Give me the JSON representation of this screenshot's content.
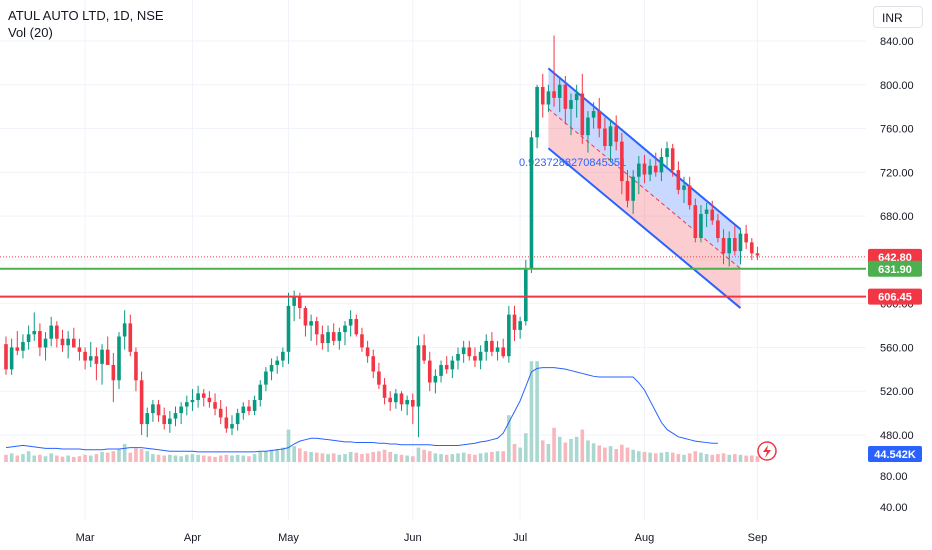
{
  "header": {
    "title": "ATUL AUTO LTD, 1D, NSE",
    "volume_label": "Vol (20)",
    "currency": "INR"
  },
  "chart_data": {
    "type": "candlestick",
    "symbol": "ATUL AUTO LTD",
    "interval": "1D",
    "exchange": "NSE",
    "y_range": [
      450,
      855
    ],
    "price_ticks": [
      480,
      520,
      560,
      600,
      640,
      680,
      720,
      760,
      800,
      840
    ],
    "price_tick_labels": [
      "480.00",
      "520.00",
      "560.00",
      "600.00",
      "640.00",
      "680.00",
      "720.00",
      "760.00",
      "800.00",
      "840.00"
    ],
    "volume_tick_labels": [
      "80.00",
      "40.00"
    ],
    "months": [
      {
        "label": "Mar",
        "index": 14
      },
      {
        "label": "Apr",
        "index": 33
      },
      {
        "label": "May",
        "index": 50
      },
      {
        "label": "Jun",
        "index": 72
      },
      {
        "label": "Jul",
        "index": 91
      },
      {
        "label": "Aug",
        "index": 113
      },
      {
        "label": "Sep",
        "index": 133
      }
    ],
    "candles": [
      [
        563,
        570,
        535,
        540,
        20
      ],
      [
        540,
        568,
        535,
        560,
        24
      ],
      [
        560,
        575,
        553,
        557,
        18
      ],
      [
        557,
        572,
        550,
        565,
        22
      ],
      [
        565,
        580,
        558,
        572,
        30
      ],
      [
        572,
        592,
        566,
        575,
        18
      ],
      [
        575,
        582,
        552,
        560,
        20
      ],
      [
        560,
        574,
        548,
        568,
        16
      ],
      [
        568,
        588,
        561,
        580,
        24
      ],
      [
        580,
        584,
        560,
        568,
        18
      ],
      [
        568,
        576,
        556,
        562,
        15
      ],
      [
        562,
        575,
        550,
        568,
        18
      ],
      [
        568,
        578,
        561,
        560,
        14
      ],
      [
        560,
        568,
        548,
        556,
        16
      ],
      [
        556,
        560,
        540,
        548,
        20
      ],
      [
        548,
        565,
        542,
        552,
        18
      ],
      [
        552,
        560,
        530,
        545,
        22
      ],
      [
        545,
        563,
        526,
        558,
        28
      ],
      [
        558,
        570,
        548,
        544,
        26
      ],
      [
        544,
        555,
        510,
        530,
        30
      ],
      [
        530,
        574,
        522,
        570,
        36
      ],
      [
        570,
        594,
        558,
        582,
        50
      ],
      [
        582,
        590,
        552,
        556,
        26
      ],
      [
        556,
        560,
        520,
        530,
        38
      ],
      [
        530,
        538,
        480,
        490,
        36
      ],
      [
        490,
        505,
        478,
        500,
        30
      ],
      [
        500,
        512,
        492,
        508,
        22
      ],
      [
        508,
        512,
        492,
        498,
        20
      ],
      [
        498,
        505,
        485,
        490,
        18
      ],
      [
        490,
        502,
        482,
        495,
        20
      ],
      [
        495,
        506,
        488,
        500,
        18
      ],
      [
        500,
        510,
        490,
        506,
        16
      ],
      [
        506,
        516,
        498,
        510,
        20
      ],
      [
        510,
        522,
        502,
        512,
        22
      ],
      [
        512,
        525,
        505,
        518,
        20
      ],
      [
        518,
        522,
        506,
        514,
        18
      ],
      [
        514,
        520,
        505,
        510,
        16
      ],
      [
        510,
        518,
        498,
        504,
        14
      ],
      [
        504,
        512,
        490,
        496,
        18
      ],
      [
        496,
        506,
        482,
        486,
        20
      ],
      [
        486,
        498,
        480,
        490,
        18
      ],
      [
        490,
        504,
        484,
        500,
        20
      ],
      [
        500,
        510,
        494,
        506,
        18
      ],
      [
        506,
        512,
        498,
        502,
        16
      ],
      [
        502,
        516,
        498,
        512,
        22
      ],
      [
        512,
        530,
        506,
        526,
        28
      ],
      [
        526,
        542,
        520,
        538,
        30
      ],
      [
        538,
        550,
        530,
        544,
        34
      ],
      [
        544,
        552,
        536,
        548,
        36
      ],
      [
        548,
        560,
        542,
        556,
        40
      ],
      [
        556,
        610,
        545,
        598,
        90
      ],
      [
        598,
        612,
        584,
        606,
        44
      ],
      [
        606,
        610,
        586,
        596,
        38
      ],
      [
        596,
        598,
        570,
        580,
        30
      ],
      [
        580,
        590,
        566,
        584,
        28
      ],
      [
        584,
        588,
        562,
        572,
        26
      ],
      [
        572,
        580,
        558,
        564,
        24
      ],
      [
        564,
        580,
        556,
        574,
        22
      ],
      [
        574,
        582,
        562,
        566,
        24
      ],
      [
        566,
        578,
        558,
        574,
        20
      ],
      [
        574,
        584,
        562,
        580,
        22
      ],
      [
        580,
        594,
        570,
        586,
        28
      ],
      [
        586,
        590,
        570,
        572,
        26
      ],
      [
        572,
        578,
        556,
        560,
        22
      ],
      [
        560,
        566,
        546,
        552,
        24
      ],
      [
        552,
        558,
        532,
        538,
        28
      ],
      [
        538,
        546,
        522,
        526,
        30
      ],
      [
        526,
        532,
        508,
        514,
        34
      ],
      [
        514,
        520,
        502,
        510,
        28
      ],
      [
        510,
        522,
        504,
        518,
        22
      ],
      [
        518,
        520,
        502,
        508,
        20
      ],
      [
        508,
        516,
        498,
        512,
        18
      ],
      [
        512,
        518,
        490,
        506,
        16
      ],
      [
        506,
        570,
        478,
        562,
        40
      ],
      [
        562,
        572,
        545,
        548,
        34
      ],
      [
        548,
        556,
        520,
        528,
        30
      ],
      [
        528,
        540,
        518,
        534,
        24
      ],
      [
        534,
        548,
        528,
        544,
        22
      ],
      [
        544,
        552,
        536,
        540,
        20
      ],
      [
        540,
        552,
        532,
        548,
        22
      ],
      [
        548,
        560,
        540,
        554,
        24
      ],
      [
        554,
        566,
        546,
        560,
        26
      ],
      [
        560,
        566,
        548,
        552,
        22
      ],
      [
        552,
        560,
        542,
        548,
        20
      ],
      [
        548,
        562,
        540,
        556,
        24
      ],
      [
        556,
        572,
        548,
        566,
        26
      ],
      [
        566,
        574,
        552,
        556,
        28
      ],
      [
        556,
        566,
        548,
        560,
        30
      ],
      [
        560,
        568,
        550,
        552,
        30
      ],
      [
        552,
        598,
        546,
        590,
        130
      ],
      [
        590,
        598,
        566,
        576,
        50
      ],
      [
        576,
        588,
        568,
        584,
        40
      ],
      [
        584,
        640,
        580,
        632,
        80
      ],
      [
        632,
        758,
        628,
        752,
        280
      ],
      [
        752,
        800,
        742,
        798,
        280
      ],
      [
        798,
        810,
        770,
        782,
        60
      ],
      [
        782,
        800,
        775,
        794,
        50
      ],
      [
        794,
        845,
        780,
        788,
        95
      ],
      [
        788,
        806,
        775,
        800,
        70
      ],
      [
        800,
        808,
        764,
        778,
        54
      ],
      [
        778,
        792,
        754,
        786,
        64
      ],
      [
        786,
        800,
        770,
        792,
        70
      ],
      [
        792,
        810,
        746,
        754,
        90
      ],
      [
        754,
        776,
        738,
        770,
        60
      ],
      [
        770,
        784,
        760,
        776,
        52
      ],
      [
        776,
        788,
        752,
        760,
        46
      ],
      [
        760,
        770,
        740,
        744,
        40
      ],
      [
        744,
        768,
        730,
        762,
        44
      ],
      [
        762,
        772,
        740,
        748,
        36
      ],
      [
        748,
        756,
        700,
        712,
        48
      ],
      [
        712,
        722,
        688,
        694,
        40
      ],
      [
        694,
        722,
        682,
        716,
        34
      ],
      [
        716,
        735,
        700,
        728,
        30
      ],
      [
        728,
        736,
        710,
        718,
        28
      ],
      [
        718,
        732,
        712,
        726,
        26
      ],
      [
        726,
        738,
        716,
        720,
        24
      ],
      [
        720,
        742,
        712,
        734,
        26
      ],
      [
        734,
        748,
        724,
        742,
        28
      ],
      [
        742,
        746,
        716,
        722,
        26
      ],
      [
        722,
        730,
        700,
        704,
        22
      ],
      [
        704,
        716,
        692,
        708,
        20
      ],
      [
        708,
        716,
        686,
        690,
        24
      ],
      [
        690,
        696,
        656,
        660,
        30
      ],
      [
        660,
        690,
        656,
        682,
        26
      ],
      [
        682,
        692,
        670,
        686,
        22
      ],
      [
        686,
        694,
        672,
        676,
        20
      ],
      [
        676,
        682,
        656,
        660,
        22
      ],
      [
        660,
        668,
        636,
        646,
        24
      ],
      [
        646,
        666,
        634,
        660,
        20
      ],
      [
        660,
        672,
        644,
        648,
        22
      ],
      [
        648,
        668,
        636,
        664,
        20
      ],
      [
        664,
        672,
        650,
        656,
        18
      ],
      [
        656,
        660,
        640,
        646,
        18
      ],
      [
        646,
        652,
        640,
        644,
        16
      ]
    ],
    "volume_line": [
      40,
      42,
      44,
      46,
      44,
      42,
      40,
      38,
      38,
      38,
      36,
      36,
      36,
      36,
      34,
      34,
      34,
      34,
      36,
      36,
      36,
      38,
      40,
      40,
      40,
      38,
      36,
      34,
      32,
      30,
      30,
      30,
      30,
      30,
      28,
      28,
      28,
      28,
      28,
      28,
      28,
      28,
      28,
      28,
      28,
      30,
      30,
      32,
      34,
      36,
      40,
      50,
      58,
      62,
      66,
      66,
      64,
      62,
      60,
      58,
      56,
      56,
      54,
      54,
      54,
      54,
      52,
      52,
      50,
      50,
      48,
      48,
      48,
      48,
      48,
      48,
      46,
      46,
      46,
      46,
      46,
      48,
      50,
      52,
      56,
      58,
      62,
      66,
      80,
      110,
      140,
      170,
      210,
      250,
      260,
      262,
      262,
      262,
      260,
      258,
      254,
      250,
      246,
      242,
      238,
      236,
      236,
      236,
      236,
      236,
      236,
      236,
      220,
      200,
      170,
      140,
      110,
      90,
      80,
      70,
      66,
      62,
      58,
      56,
      54,
      52,
      52
    ],
    "channel": {
      "upper": {
        "from": {
          "index": 96,
          "price": 815
        },
        "to": {
          "index": 130,
          "price": 668
        }
      },
      "middle": {
        "from": {
          "index": 96,
          "price": 778
        },
        "to": {
          "index": 130,
          "price": 632
        }
      },
      "lower": {
        "from": {
          "index": 96,
          "price": 742
        },
        "to": {
          "index": 130,
          "price": 596
        }
      },
      "label": "0.9237288270845351"
    },
    "horizontal_lines": [
      {
        "price": 631.9,
        "label": "631.90",
        "color": "#4caf50"
      },
      {
        "price": 606.45,
        "label": "606.45",
        "color": "#f23645"
      }
    ],
    "last_price": {
      "value": 642.8,
      "label": "642.80",
      "color": "#f23645"
    },
    "volume_marker": {
      "label": "44.542K",
      "color": "#2962ff"
    },
    "colors": {
      "up": "#089981",
      "down": "#f23645",
      "up_volume": "#a8d8d0",
      "down_volume": "#f8b6bd",
      "volume_line": "#2962ff",
      "grid": "#f0f3fa"
    }
  }
}
